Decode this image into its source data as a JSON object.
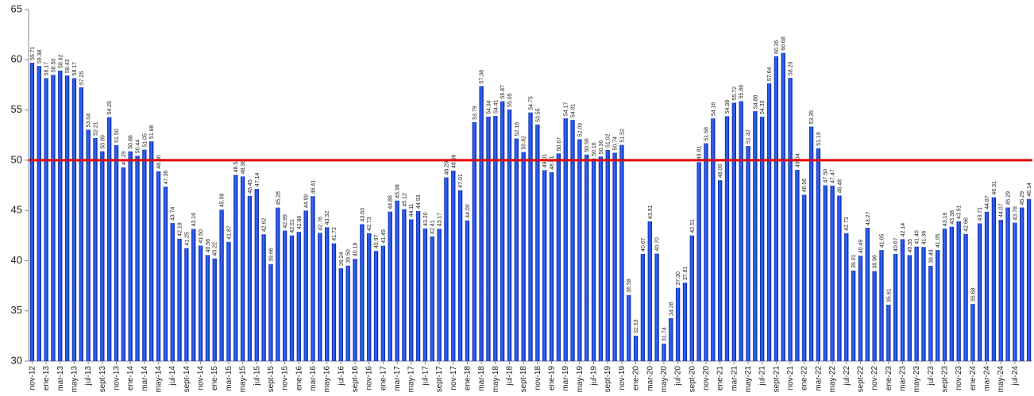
{
  "chart_data": {
    "type": "bar",
    "categories": [
      "nov-12",
      null,
      "ene-13",
      null,
      "mar-13",
      null,
      "may-13",
      null,
      "jul-13",
      null,
      "sept-13",
      null,
      "nov-13",
      null,
      "ene-14",
      null,
      "mar-14",
      null,
      "may-14",
      null,
      "jul-14",
      null,
      "sept-14",
      null,
      "nov-14",
      null,
      "ene-15",
      null,
      "mar-15",
      null,
      "may-15",
      null,
      "jul-15",
      null,
      "sept-15",
      null,
      "nov-15",
      null,
      "ene-16",
      null,
      "mar-16",
      null,
      "may-16",
      null,
      "jul-16",
      null,
      "sept-16",
      null,
      "nov-16",
      null,
      "ene-17",
      null,
      "mar-17",
      null,
      "may-17",
      null,
      "jul-17",
      null,
      "sept-17",
      null,
      "nov-17",
      null,
      "ene-18",
      null,
      "mar-18",
      null,
      "may-18",
      null,
      "jul-18",
      null,
      "sept-18",
      null,
      "nov-18",
      null,
      "ene-19",
      null,
      "mar-19",
      null,
      "may-19",
      null,
      "jul-19",
      null,
      "sept-19",
      null,
      "nov-19",
      null,
      "ene-20",
      null,
      "mar-20",
      null,
      "may-20",
      null,
      "jul-20",
      null,
      "sept-20",
      null,
      "nov-20",
      null,
      "ene-21",
      null,
      "mar-21",
      null,
      "may-21",
      null,
      "jul-21",
      null,
      "sept-21",
      null,
      "nov-21",
      null,
      "ene-22",
      null,
      "mar-22",
      null,
      "may-22",
      null,
      "jul-22",
      null,
      "sept-22",
      null,
      "nov-22",
      null,
      "ene-23",
      null,
      "mar-23",
      null,
      "may-23",
      null,
      "jul-23",
      null,
      "sept-23",
      null,
      "nov-23",
      null,
      "ene-24",
      null,
      "mar-24",
      null,
      "may-24",
      null,
      "jul-24",
      null,
      null
    ],
    "values": [
      59.71,
      59.38,
      58.17,
      58.5,
      58.92,
      58.43,
      58.17,
      57.25,
      53.04,
      52.21,
      50.89,
      54.29,
      51.5,
      49.29,
      50.88,
      50.44,
      51.05,
      51.88,
      48.9,
      47.36,
      43.74,
      42.18,
      41.25,
      43.16,
      41.5,
      40.56,
      40.22,
      45.08,
      41.87,
      48.54,
      48.38,
      46.45,
      47.14,
      42.62,
      39.66,
      45.28,
      42.99,
      42.51,
      42.86,
      44.99,
      46.41,
      42.76,
      43.32,
      41.72,
      39.24,
      39.5,
      40.18,
      43.63,
      42.73,
      40.97,
      41.49,
      44.88,
      45.98,
      45.12,
      44.11,
      44.93,
      43.2,
      42.41,
      43.17,
      48.29,
      48.96,
      47.01,
      44.0,
      53.79,
      57.38,
      54.34,
      54.41,
      55.87,
      55.05,
      52.16,
      50.82,
      54.75,
      53.55,
      49.01,
      48.81,
      50.67,
      54.17,
      54.01,
      52.09,
      50.56,
      50.16,
      50.36,
      51.02,
      50.74,
      51.52,
      36.58,
      32.53,
      40.67,
      43.91,
      40.7,
      31.74,
      34.28,
      37.3,
      37.81,
      42.51,
      49.81,
      51.68,
      54.16,
      48.0,
      54.38,
      55.72,
      55.88,
      51.42,
      54.88,
      54.33,
      57.64,
      60.35,
      60.68,
      58.2,
      49.04,
      46.56,
      53.35,
      51.19,
      47.5,
      47.47,
      46.48,
      42.73,
      39.01,
      40.49,
      43.27,
      38.96,
      41.05,
      35.61,
      40.67,
      42.14,
      40.55,
      41.4,
      41.36,
      39.49,
      41.05,
      43.19,
      43.38,
      43.91,
      42.66,
      35.68,
      43.71,
      44.87,
      46.31,
      44.07,
      45.29,
      43.78,
      45.29,
      46.14
    ],
    "value_labels": [
      "59.71",
      "59.38",
      "58.17",
      "58.50",
      "58.92",
      "58.43",
      "58.17",
      "57.25",
      "53.04",
      "52.21",
      "50.89",
      "54.29",
      "51.50",
      "49.29",
      "50.88",
      "50.44",
      "51.05",
      "51.88",
      "48.90",
      "47.36",
      "43.74",
      "42.18",
      "41.25",
      "43.16",
      "41.50",
      "40.56",
      "40.22",
      "45.08",
      "41.87",
      "48.54",
      "48.38",
      "46.45",
      "47.14",
      "42.62",
      "39.66",
      "45.28",
      "42.99",
      "42.51",
      "42.86",
      "44.99",
      "46.41",
      "42.76",
      "43.32",
      "41.72",
      "39.24",
      "39.50",
      "40.18",
      "43.63",
      "42.73",
      "40.97",
      "41.49",
      "44.88",
      "45.98",
      "45.12",
      "44.11",
      "44.93",
      "43.20",
      "42.41",
      "43.17",
      "48.29",
      "48.96",
      "47.01",
      "44.00",
      "53.79",
      "57.38",
      "54.34",
      "54.41",
      "55.87",
      "55.05",
      "52.16",
      "50.82",
      "54.75",
      "53.55",
      "49.01",
      "48.81",
      "50.67",
      "54.17",
      "54.01",
      "52.09",
      "50.56",
      "50.16",
      "50.36",
      "51.02",
      "50.74",
      "51.52",
      "36.58",
      "32.53",
      "40.67",
      "43.91",
      "40.70",
      "31.74",
      "34.28",
      "37.30",
      "37.81",
      "42.51",
      "49.81",
      "51.68",
      "54.16",
      "48.00",
      "54.38",
      "55.72",
      "55.88",
      "51.42",
      "54.88",
      "54.33",
      "57.64",
      "60.35",
      "60.68",
      "58.20",
      "49.04",
      "46.56",
      "53.35",
      "51.19",
      "47.50",
      "47.47",
      "46.48",
      "42.73",
      "39.01",
      "40.49",
      "43.27",
      "38.96",
      "41.05",
      "35.61",
      "40.67",
      "42.14",
      "40.55",
      "41.40",
      "41.36",
      "39.49",
      "41.05",
      "43.19",
      "43.38",
      "43.91",
      "42.66",
      "35.68",
      "43.71",
      "44.87",
      "46.31",
      "44.07",
      "45.29",
      "43.78",
      "45.29",
      "46.14"
    ],
    "color": "#0a3cd8",
    "ylim": [
      30,
      65
    ],
    "yticks": [
      30,
      35,
      40,
      45,
      50,
      55,
      60,
      65
    ],
    "reference_line": {
      "value": 50,
      "color": "#e00000"
    }
  }
}
